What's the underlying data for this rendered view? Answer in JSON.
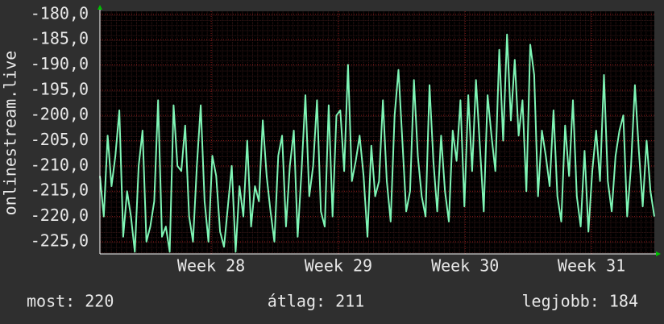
{
  "chart_data": {
    "type": "line",
    "y_label": "onlinestream.live",
    "ylim": [
      -227.4,
      -179.4
    ],
    "yticks": [
      {
        "value": -180,
        "label": "-180,0"
      },
      {
        "value": -185,
        "label": "-185,0"
      },
      {
        "value": -190,
        "label": "-190,0"
      },
      {
        "value": -195,
        "label": "-195,0"
      },
      {
        "value": -200,
        "label": "-200,0"
      },
      {
        "value": -205,
        "label": "-205,0"
      },
      {
        "value": -210,
        "label": "-210,0"
      },
      {
        "value": -215,
        "label": "-215,0"
      },
      {
        "value": -220,
        "label": "-220,0"
      },
      {
        "value": -225,
        "label": "-225,0"
      }
    ],
    "xlim": [
      0,
      143
    ],
    "xticks": [
      {
        "value": 28.7,
        "label": "Week 28"
      },
      {
        "value": 61.5,
        "label": "Week 29"
      },
      {
        "value": 94.2,
        "label": "Week 30"
      },
      {
        "value": 126.8,
        "label": "Week 31"
      }
    ],
    "grid": true,
    "series": [
      {
        "color": "#7ff5b5",
        "values": [
          -212,
          -220,
          -204,
          -214,
          -208,
          -199,
          -224,
          -215,
          -220,
          -227,
          -210,
          -203,
          -225,
          -222,
          -217,
          -197,
          -224,
          -222,
          -227,
          -198,
          -210,
          -211,
          -202,
          -220,
          -225,
          -210,
          -198,
          -217,
          -225,
          -208,
          -212,
          -223,
          -226,
          -218,
          -210,
          -227,
          -214,
          -220,
          -205,
          -222,
          -214,
          -217,
          -201,
          -212,
          -219,
          -225,
          -208,
          -204,
          -222,
          -210,
          -203,
          -224,
          -211,
          -196,
          -216,
          -210,
          -197,
          -219,
          -222,
          -198,
          -220,
          -200,
          -199,
          -211,
          -190,
          -213,
          -209,
          -204,
          -212,
          -224,
          -206,
          -216,
          -213,
          -197,
          -213,
          -221,
          -200,
          -191,
          -205,
          -219,
          -215,
          -193,
          -208,
          -216,
          -220,
          -194,
          -209,
          -219,
          -204,
          -215,
          -221,
          -203,
          -209,
          -197,
          -218,
          -196,
          -211,
          -193,
          -206,
          -219,
          -196,
          -204,
          -211,
          -187,
          -205,
          -184,
          -201,
          -189,
          -204,
          -197,
          -215,
          -186,
          -192,
          -216,
          -203,
          -208,
          -214,
          -199,
          -216,
          -221,
          -202,
          -212,
          -197,
          -216,
          -222,
          -207,
          -223,
          -211,
          -203,
          -213,
          -192,
          -213,
          -219,
          -208,
          -203,
          -200,
          -220,
          -210,
          -194,
          -207,
          -218,
          -205,
          -215,
          -220
        ]
      }
    ]
  },
  "footer": {
    "current": "most: 220",
    "average": "átlag: 211",
    "best": "legjobb: 184"
  }
}
